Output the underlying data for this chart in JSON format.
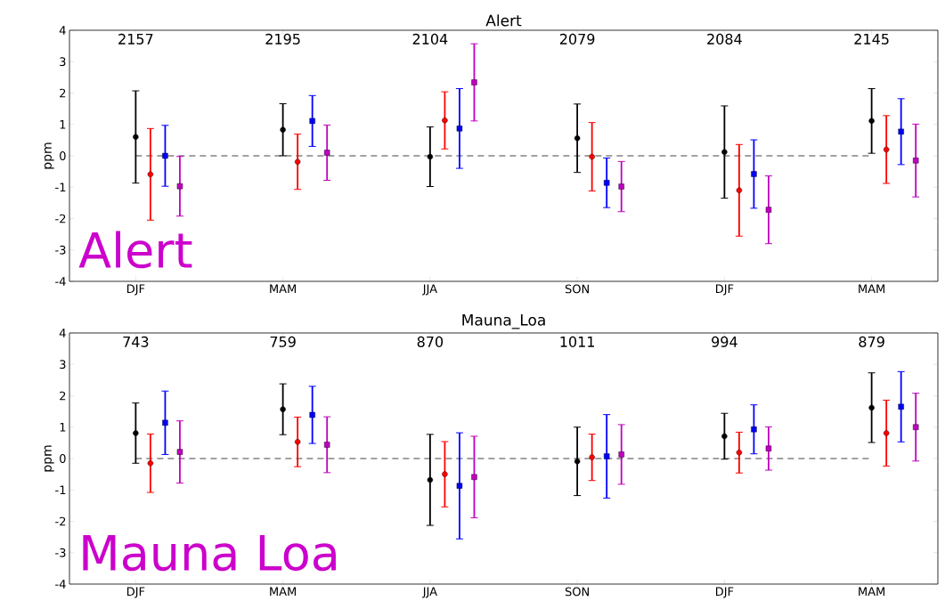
{
  "chart_data": [
    {
      "type": "scatter",
      "title": "Alert",
      "ylabel": "ppm",
      "categories": [
        "DJF",
        "MAM",
        "JJA",
        "SON",
        "DJF",
        "MAM"
      ],
      "ylim": [
        -4,
        4
      ],
      "yticks": [
        -4,
        -3,
        -2,
        -1,
        0,
        1,
        2,
        3,
        4
      ],
      "series": [
        {
          "color": "#000000",
          "marker": "circle",
          "values": [
            0.6,
            0.83,
            -0.03,
            0.56,
            0.12,
            1.11
          ],
          "errors": [
            1.47,
            0.83,
            0.95,
            1.09,
            1.47,
            1.03
          ]
        },
        {
          "color": "#ff0000",
          "marker": "circle",
          "values": [
            -0.59,
            -0.19,
            1.13,
            -0.03,
            -1.1,
            0.2
          ],
          "errors": [
            1.46,
            0.88,
            0.91,
            1.09,
            1.46,
            1.08
          ]
        },
        {
          "color": "#0000ff",
          "marker": "square",
          "values": [
            0,
            1.11,
            0.87,
            -0.86,
            -0.58,
            0.77
          ],
          "errors": [
            0.97,
            0.81,
            1.27,
            0.79,
            1.09,
            1.05
          ]
        },
        {
          "color": "#bf00bf",
          "marker": "square",
          "values": [
            -0.97,
            0.1,
            2.34,
            -0.98,
            -1.72,
            -0.15
          ],
          "errors": [
            0.95,
            0.88,
            1.23,
            0.8,
            1.08,
            1.16
          ]
        }
      ],
      "ref_lines": [
        {
          "axis": "y",
          "value": 0,
          "line_style": "dashed",
          "color": "#444444"
        }
      ],
      "annotations": [
        "2157",
        "2195",
        "2104",
        "2079",
        "2084",
        "2145",
        "Alert"
      ]
    },
    {
      "type": "scatter",
      "title": "Mauna_Loa",
      "ylabel": "ppm",
      "categories": [
        "DJF",
        "MAM",
        "JJA",
        "SON",
        "DJF",
        "MAM"
      ],
      "ylim": [
        -4,
        4
      ],
      "yticks": [
        -4,
        -3,
        -2,
        -1,
        0,
        1,
        2,
        3,
        4
      ],
      "series": [
        {
          "color": "#000000",
          "marker": "circle",
          "values": [
            0.81,
            1.57,
            -0.68,
            -0.09,
            0.71,
            1.62
          ],
          "errors": [
            0.96,
            0.81,
            1.45,
            1.09,
            0.73,
            1.11
          ]
        },
        {
          "color": "#ff0000",
          "marker": "circle",
          "values": [
            -0.15,
            0.53,
            -0.5,
            0.04,
            0.19,
            0.81
          ],
          "errors": [
            0.93,
            0.79,
            1.04,
            0.74,
            0.65,
            1.05
          ]
        },
        {
          "color": "#0000ff",
          "marker": "square",
          "values": [
            1.14,
            1.39,
            -0.87,
            0.07,
            0.93,
            1.65
          ],
          "errors": [
            1.01,
            0.91,
            1.69,
            1.33,
            0.78,
            1.12
          ]
        },
        {
          "color": "#bf00bf",
          "marker": "square",
          "values": [
            0.21,
            0.44,
            -0.59,
            0.13,
            0.32,
            1.0
          ],
          "errors": [
            0.99,
            0.89,
            1.3,
            0.95,
            0.69,
            1.08
          ]
        }
      ],
      "ref_lines": [
        {
          "axis": "y",
          "value": 0,
          "line_style": "dashed",
          "color": "#444444"
        }
      ],
      "annotations": [
        "743",
        "759",
        "870",
        "1011",
        "994",
        "879",
        "Mauna Loa"
      ]
    }
  ]
}
